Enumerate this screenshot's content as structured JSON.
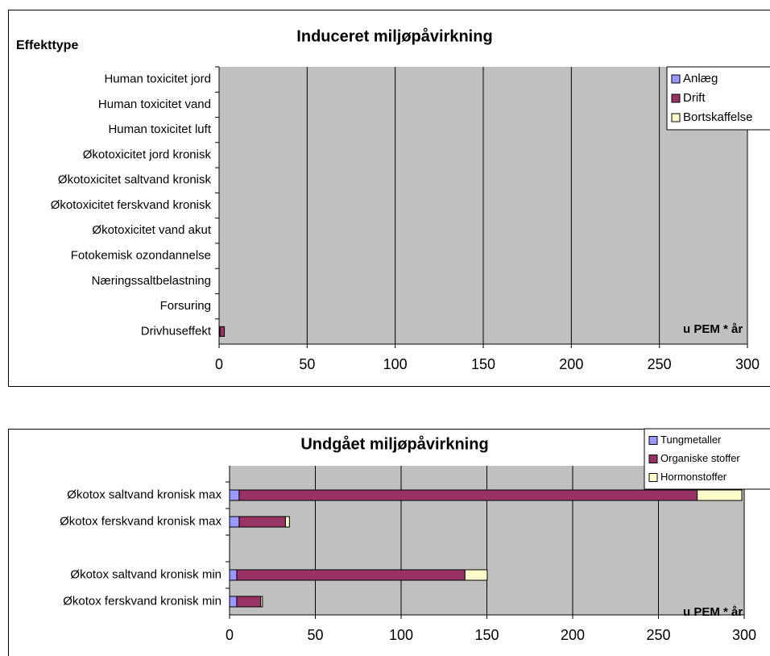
{
  "chart_data": [
    {
      "type": "hbar-stacked",
      "title": "Induceret miljøpåvirkning",
      "y_label": "Effekttype",
      "x_label": "u PEM * år",
      "categories": [
        "Human toxicitet jord",
        "Human toxicitet vand",
        "Human toxicitet luft",
        "Økotoxicitet jord kronisk",
        "Økotoxicitet saltvand kronisk",
        "Økotoxicitet ferskvand kronisk",
        "Økotoxicitet vand akut",
        "Fotokemisk ozondannelse",
        "Næringssaltbelastning",
        "Forsuring",
        "Drivhuseffekt"
      ],
      "series": [
        {
          "name": "Anlæg",
          "color": "#9999ff",
          "values": [
            0,
            0,
            0,
            0,
            0,
            0,
            0,
            0,
            0,
            0,
            0.5
          ]
        },
        {
          "name": "Drift",
          "color": "#993366",
          "values": [
            0,
            0,
            0,
            0,
            0,
            0,
            0,
            0,
            0,
            0,
            2.5
          ]
        },
        {
          "name": "Bortskaffelse",
          "color": "#ffffcc",
          "values": [
            0,
            0,
            0,
            0,
            0,
            0,
            0,
            0,
            0,
            0,
            0
          ]
        }
      ],
      "xlim": [
        0,
        300
      ],
      "xticks": [
        0,
        50,
        100,
        150,
        200,
        250,
        300
      ],
      "grid": true,
      "legend": "top-right"
    },
    {
      "type": "hbar-stacked",
      "title": "Undgået miljøpåvirkning",
      "x_label": "u PEM * år",
      "categories": [
        "Økotox saltvand kronisk max",
        "Økotox ferskvand kronisk max",
        null,
        "Økotox saltvand kronisk min",
        "Økotox ferskvand kronisk min"
      ],
      "series": [
        {
          "name": "Tungmetaller",
          "color": "#9999ff",
          "values": [
            5.6,
            5.6,
            null,
            4.2,
            4.2
          ]
        },
        {
          "name": "Organiske stoffer",
          "color": "#993366",
          "values": [
            267,
            27,
            null,
            133,
            14
          ]
        },
        {
          "name": "Hormonstoffer",
          "color": "#ffffcc",
          "values": [
            26,
            2.3,
            null,
            13,
            1
          ]
        }
      ],
      "xlim": [
        0,
        300
      ],
      "xticks": [
        0,
        50,
        100,
        150,
        200,
        250,
        300
      ],
      "grid": true,
      "legend": "top-right"
    }
  ]
}
